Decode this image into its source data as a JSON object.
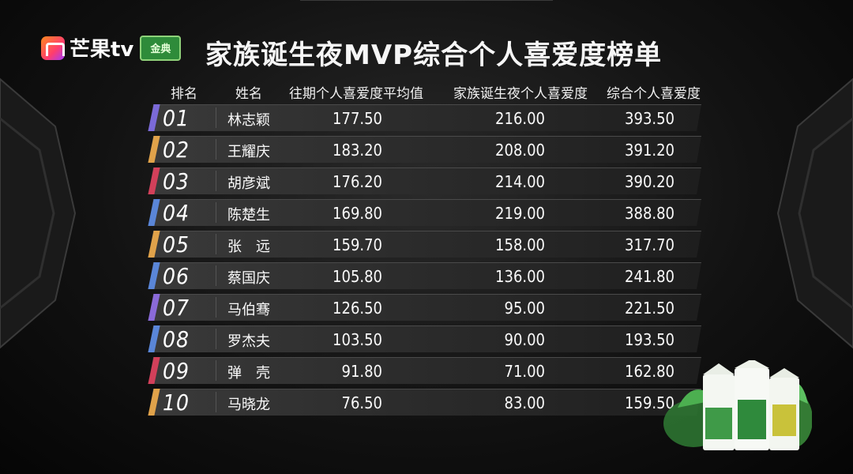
{
  "branding": {
    "platform_logo_text": "芒果tv",
    "sponsor_mark_text": "金典"
  },
  "title": "家族诞生夜MVP综合个人喜爱度榜单",
  "table": {
    "headers": [
      "排名",
      "姓名",
      "往期个人喜爱度平均值",
      "家族诞生夜个人喜爱度",
      "综合个人喜爱度"
    ],
    "rows": [
      {
        "rank": "01",
        "name": "林志颖",
        "prev_avg": "177.50",
        "night": "216.00",
        "total": "393.50",
        "accent": "#7b6ad8"
      },
      {
        "rank": "02",
        "name": "王耀庆",
        "prev_avg": "183.20",
        "night": "208.00",
        "total": "391.20",
        "accent": "#e0a24a"
      },
      {
        "rank": "03",
        "name": "胡彦斌",
        "prev_avg": "176.20",
        "night": "214.00",
        "total": "390.20",
        "accent": "#d2405a"
      },
      {
        "rank": "04",
        "name": "陈楚生",
        "prev_avg": "169.80",
        "night": "219.00",
        "total": "388.80",
        "accent": "#5a86d8"
      },
      {
        "rank": "05",
        "name": "张　远",
        "prev_avg": "159.70",
        "night": "158.00",
        "total": "317.70",
        "accent": "#e0a24a"
      },
      {
        "rank": "06",
        "name": "蔡国庆",
        "prev_avg": "105.80",
        "night": "136.00",
        "total": "241.80",
        "accent": "#5a86d8"
      },
      {
        "rank": "07",
        "name": "马伯骞",
        "prev_avg": "126.50",
        "night": "95.00",
        "total": "221.50",
        "accent": "#8a6ad8"
      },
      {
        "rank": "08",
        "name": "罗杰夫",
        "prev_avg": "103.50",
        "night": "90.00",
        "total": "193.50",
        "accent": "#5a86d8"
      },
      {
        "rank": "09",
        "name": "弹　壳",
        "prev_avg": "91.80",
        "night": "71.00",
        "total": "162.80",
        "accent": "#d2405a"
      },
      {
        "rank": "10",
        "name": "马晓龙",
        "prev_avg": "76.50",
        "night": "83.00",
        "total": "159.50",
        "accent": "#e0a24a"
      }
    ]
  },
  "colors": {
    "background": "#121212",
    "row_bg": "#2c2c2c",
    "text": "#fafafa"
  },
  "icons": [
    "mango-tv-logo-icon",
    "sponsor-logo-icon",
    "milk-cartons-product-icon"
  ]
}
